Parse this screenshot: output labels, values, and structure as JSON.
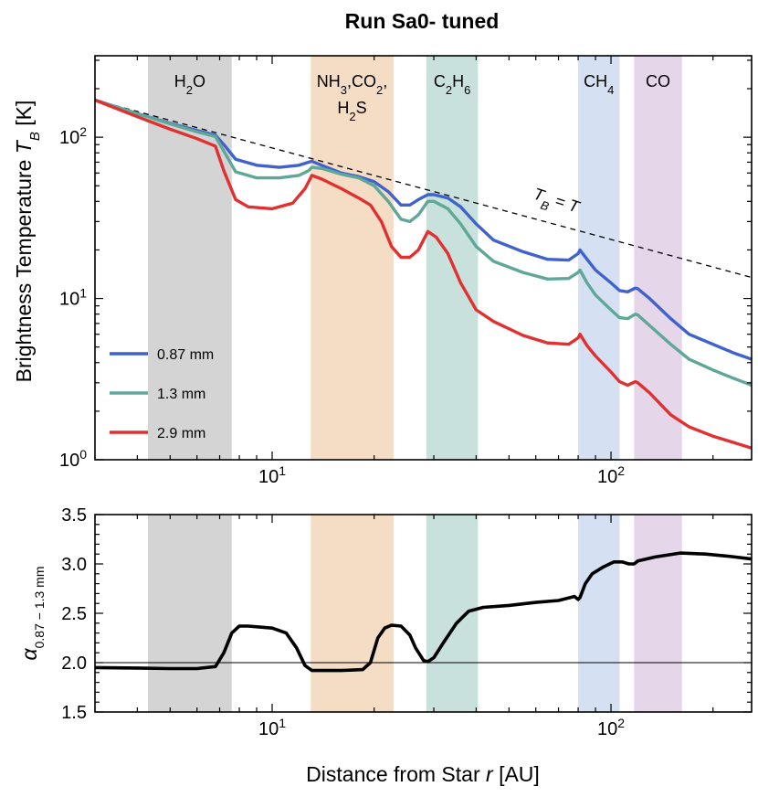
{
  "chart_data": {
    "title": "Run Sa0- tuned",
    "xlabel": "Distance from Star  r [AU]",
    "x_scale": "log",
    "xlim": [
      3.0,
      260
    ],
    "x_ticks": [
      {
        "value": 10,
        "label": "10",
        "exp": "1"
      },
      {
        "value": 100,
        "label": "10",
        "exp": "2"
      }
    ],
    "bands": [
      {
        "name": "H2O",
        "label_lines": [
          [
            {
              "t": "H"
            },
            {
              "t": "2",
              "sub": true
            },
            {
              "t": "O"
            }
          ]
        ],
        "x0": 4.3,
        "x1": 7.6,
        "color": "#d4d4d4"
      },
      {
        "name": "NH3,CO2,H2S",
        "label_lines": [
          [
            {
              "t": "NH"
            },
            {
              "t": "3",
              "sub": true
            },
            {
              "t": ",CO"
            },
            {
              "t": "2",
              "sub": true
            },
            {
              "t": ","
            }
          ],
          [
            {
              "t": "H"
            },
            {
              "t": "2",
              "sub": true
            },
            {
              "t": "S"
            }
          ]
        ],
        "x0": 13.0,
        "x1": 22.8,
        "color": "#f5dcc5"
      },
      {
        "name": "C2H6",
        "label_lines": [
          [
            {
              "t": "C"
            },
            {
              "t": "2",
              "sub": true
            },
            {
              "t": "H"
            },
            {
              "t": "6",
              "sub": true
            }
          ]
        ],
        "x0": 28.5,
        "x1": 40.5,
        "color": "#c8e1dc"
      },
      {
        "name": "CH4",
        "label_lines": [
          [
            {
              "t": "CH"
            },
            {
              "t": "4",
              "sub": true
            }
          ]
        ],
        "x0": 80,
        "x1": 106,
        "color": "#d6e0f3"
      },
      {
        "name": "CO",
        "label_lines": [
          [
            {
              "t": "CO"
            }
          ]
        ],
        "x0": 117,
        "x1": 162,
        "color": "#e5d6ea"
      }
    ],
    "panels": [
      {
        "id": "top",
        "type": "line",
        "y_scale": "log",
        "ylim": [
          1,
          320
        ],
        "ylabel": "Brightness Temperature",
        "ylabel_symbol": "T",
        "ylabel_symbol_sub": "B",
        "ylabel_unit": "[K]",
        "y_ticks": [
          {
            "value": 1,
            "label": "10",
            "exp": "0"
          },
          {
            "value": 10,
            "label": "10",
            "exp": "1"
          },
          {
            "value": 100,
            "label": "10",
            "exp": "2"
          }
        ],
        "reference_line": {
          "label": "T",
          "label_sub": "B",
          "label_rest": " = T",
          "style": "dashed",
          "x": [
            3,
            260
          ],
          "y": [
            170,
            13.5
          ]
        },
        "series": [
          {
            "name": "0.87 mm",
            "color": "#3f62cc",
            "x": [
              3.0,
              4.0,
              5.0,
              6.0,
              6.8,
              7.2,
              7.8,
              9.0,
              10.5,
              12.0,
              12.8,
              13.1,
              14.0,
              16.0,
              18.0,
              20.0,
              22.0,
              24.0,
              25.5,
              27.0,
              28.8,
              30.0,
              33.0,
              36.0,
              40.0,
              45.0,
              55.0,
              65.0,
              75.0,
              80.0,
              81.0,
              85.0,
              90.0,
              100.0,
              106.0,
              112.0,
              118.0,
              120.0,
              130.0,
              150.0,
              170.0,
              200.0,
              230.0,
              260.0
            ],
            "y": [
              170,
              140,
              122,
              110,
              103,
              90,
              73,
              67,
              65,
              67,
              70,
              71,
              67,
              60,
              57,
              53,
              46,
              38,
              38,
              41,
              44,
              44,
              42,
              37,
              29,
              23,
              19.5,
              17.5,
              17.3,
              19,
              20,
              17.5,
              15,
              12.5,
              11.2,
              11,
              11.6,
              11.5,
              10,
              7.5,
              6,
              5.2,
              4.6,
              4.2
            ]
          },
          {
            "name": "1.3 mm",
            "color": "#5fa898",
            "x": [
              3.0,
              4.0,
              5.0,
              6.0,
              6.8,
              7.2,
              7.8,
              9.0,
              10.5,
              12.0,
              12.8,
              13.1,
              14.0,
              16.0,
              18.0,
              20.0,
              22.0,
              24.0,
              25.5,
              27.0,
              28.8,
              30.0,
              33.0,
              36.0,
              40.0,
              45.0,
              55.0,
              65.0,
              75.0,
              80.0,
              81.0,
              85.0,
              90.0,
              100.0,
              106.0,
              112.0,
              118.0,
              120.0,
              130.0,
              150.0,
              170.0,
              200.0,
              230.0,
              260.0
            ],
            "y": [
              170,
              140,
              121,
              108,
              101,
              82,
              61,
              56,
              56,
              58,
              62,
              65,
              64,
              59,
              56,
              50,
              40,
              31,
              30,
              33,
              40,
              40,
              36,
              29,
              21,
              17,
              14.5,
              13.2,
              13.3,
              14.5,
              15,
              12.5,
              10.5,
              8.5,
              7.6,
              7.5,
              8,
              7.9,
              6.8,
              5.2,
              4.2,
              3.6,
              3.2,
              2.9
            ]
          },
          {
            "name": "2.9 mm",
            "color": "#e03130",
            "x": [
              3.0,
              4.0,
              5.0,
              6.0,
              6.8,
              7.2,
              7.8,
              8.5,
              10.0,
              11.5,
              12.5,
              13.1,
              14.0,
              16.0,
              18.0,
              19.5,
              21.0,
              22.5,
              24.0,
              25.5,
              27.0,
              28.8,
              30.5,
              33.0,
              36.0,
              40.0,
              45.0,
              55.0,
              65.0,
              75.0,
              80.0,
              81.0,
              85.0,
              90.0,
              100.0,
              106.0,
              112.0,
              118.0,
              120.0,
              130.0,
              150.0,
              170.0,
              200.0,
              230.0,
              260.0
            ],
            "y": [
              170,
              134,
              112,
              98,
              88,
              62,
              41,
              37,
              36,
              39,
              48,
              58,
              55,
              48,
              42,
              38,
              30,
              21,
              18,
              18,
              20,
              26,
              24,
              19,
              12.5,
              8.5,
              7.2,
              5.9,
              5.3,
              5.2,
              5.7,
              6,
              5.1,
              4.4,
              3.5,
              3.05,
              2.9,
              3.05,
              3.0,
              2.6,
              1.9,
              1.6,
              1.4,
              1.28,
              1.18
            ]
          }
        ],
        "legend": {
          "position": "lower-left",
          "entries": [
            "0.87 mm",
            "1.3 mm",
            "2.9 mm"
          ]
        }
      },
      {
        "id": "bottom",
        "type": "line",
        "y_scale": "linear",
        "ylim": [
          1.5,
          3.5
        ],
        "ylabel_symbol": "α",
        "ylabel_sub": "0.87 − 1.3 mm",
        "y_ticks": [
          {
            "value": 1.5,
            "label": "1.5"
          },
          {
            "value": 2.0,
            "label": "2.0"
          },
          {
            "value": 2.5,
            "label": "2.5"
          },
          {
            "value": 3.0,
            "label": "3.0"
          },
          {
            "value": 3.5,
            "label": "3.5"
          }
        ],
        "reference_line": {
          "y": 2.0,
          "style": "solid-thin"
        },
        "series": [
          {
            "name": "alpha",
            "color": "#000000",
            "x": [
              3.0,
              4.0,
              5.0,
              6.0,
              6.8,
              7.2,
              7.6,
              8.0,
              8.5,
              10.0,
              11.0,
              11.8,
              12.5,
              13.1,
              14.0,
              16.0,
              18.5,
              19.5,
              20.5,
              21.5,
              22.5,
              24.0,
              25.5,
              26.5,
              28.0,
              28.8,
              30.0,
              32.0,
              35.0,
              38.0,
              42.0,
              50.0,
              60.0,
              70.0,
              78.0,
              80.0,
              81.0,
              84.0,
              88.0,
              95.0,
              102.0,
              108.0,
              113.0,
              117.0,
              120.0,
              135.0,
              160.0,
              190.0,
              220.0,
              260.0
            ],
            "y": [
              1.95,
              1.945,
              1.94,
              1.94,
              1.96,
              2.1,
              2.3,
              2.37,
              2.37,
              2.35,
              2.3,
              2.15,
              1.97,
              1.92,
              1.92,
              1.92,
              1.93,
              2.0,
              2.25,
              2.35,
              2.38,
              2.37,
              2.28,
              2.15,
              2.02,
              2.01,
              2.05,
              2.2,
              2.4,
              2.52,
              2.56,
              2.58,
              2.61,
              2.63,
              2.67,
              2.64,
              2.66,
              2.8,
              2.9,
              2.97,
              3.02,
              3.02,
              3.0,
              3.0,
              3.03,
              3.07,
              3.11,
              3.1,
              3.08,
              3.05
            ]
          }
        ]
      }
    ]
  }
}
